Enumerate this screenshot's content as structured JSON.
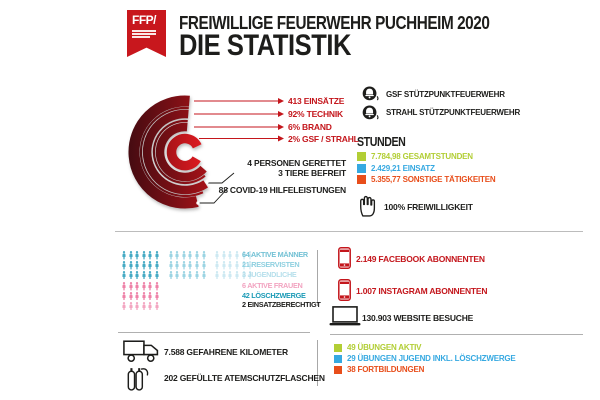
{
  "header": {
    "logo_text": "FFP/",
    "title_line1": "FREIWILLIGE FEUERWEHR PUCHHEIM 2020",
    "title_line2": "DIE STATISTIK"
  },
  "chart_data": {
    "type": "radial-bar",
    "title": "",
    "rings": [
      {
        "label": "413 EINSÄTZE",
        "value": 413
      },
      {
        "label": "92% TECHNIK",
        "value": 92
      },
      {
        "label": "6% BRAND",
        "value": 6
      },
      {
        "label": "2% GSF / STRAHL",
        "value": 2
      }
    ],
    "annotations": [
      "4 PERSONEN GERETTET",
      "3 TIERE BEFREIT",
      "88 COVID-19 HILFELEISTUNGEN"
    ],
    "palette": {
      "dark": "#450b11",
      "bright": "#d8161e",
      "label_color": "#c4161c"
    }
  },
  "stuetzpunkt": {
    "items": [
      {
        "label": "GSF STÜTZPUNKTFEUERWEHR"
      },
      {
        "label": "STRAHL STÜTZPUNKTFEUERWEHR"
      }
    ]
  },
  "stunden": {
    "heading": "STUNDEN",
    "items": [
      {
        "label": "7.784,98 GESAMTSTUNDEN",
        "color": "#b2ce35"
      },
      {
        "label": "2.429,21 EINSATZ",
        "color": "#36a9e1"
      },
      {
        "label": "5.355,77 SONSTIGE TÄTIGKEITEN",
        "color": "#e84e1b"
      }
    ],
    "volunteer_label": "100% FREIWILLIGKEIT"
  },
  "members": {
    "rows": [
      {
        "label": "64 AKTIVE MÄNNER",
        "label_color": "#74c2d5",
        "groups": [
          {
            "count": 6,
            "color": "#45aac4"
          },
          {
            "count": 6,
            "color": "#9bd4e3"
          },
          {
            "count": 6,
            "color": "#cde9f2"
          }
        ]
      },
      {
        "label": "21 RESERVISTEN",
        "label_color": "#8fd0e0",
        "groups": [
          {
            "count": 6,
            "color": "#45aac4"
          },
          {
            "count": 6,
            "color": "#9bd4e3"
          },
          {
            "count": 6,
            "color": "#cde9f2"
          }
        ]
      },
      {
        "label": "3 JUGENDLICHE",
        "label_color": "#b6dfeb",
        "groups": [
          {
            "count": 6,
            "color": "#45aac4"
          },
          {
            "count": 6,
            "color": "#9bd4e3"
          },
          {
            "count": 6,
            "color": "#cde9f2"
          }
        ]
      },
      {
        "label": "6 AKTIVE FRAUEN",
        "label_color": "#f2a3c0",
        "groups": [
          {
            "count": 6,
            "color": "#ee82a8"
          }
        ]
      },
      {
        "label": "42 LÖSCHZWERGE",
        "label_color": "#1b9ab6",
        "groups": [
          {
            "count": 6,
            "color": "#ee82a8"
          }
        ]
      },
      {
        "label": "2 EINSATZBERECHTIGT",
        "label_color": "#1d1d1b",
        "groups": [
          {
            "count": 6,
            "color": "#f3a6c1"
          }
        ]
      }
    ]
  },
  "social": {
    "facebook": {
      "label": "2.149 FACEBOOK ABONNENTEN",
      "color": "#c4161c"
    },
    "instagram": {
      "label": "1.007 INSTAGRAM ABONNENTEN",
      "color": "#c4161c"
    },
    "website": {
      "label": "130.903 WEBSITE BESUCHE",
      "color": "#1d1d1b"
    }
  },
  "logistics": {
    "kilometers": "7.588 GEFAHRENE KILOMETER",
    "bottles": "202 GEFÜLLTE ATEMSCHUTZFLASCHEN"
  },
  "uebungen": {
    "items": [
      {
        "label": "49 ÜBUNGEN AKTIV",
        "color": "#b2ce35"
      },
      {
        "label": "29 ÜBUNGEN JUGEND INKL. LÖSCHZWERGE",
        "color": "#36a9e1"
      },
      {
        "label": "38 FORTBILDUNGEN",
        "color": "#e84e1b"
      }
    ]
  }
}
